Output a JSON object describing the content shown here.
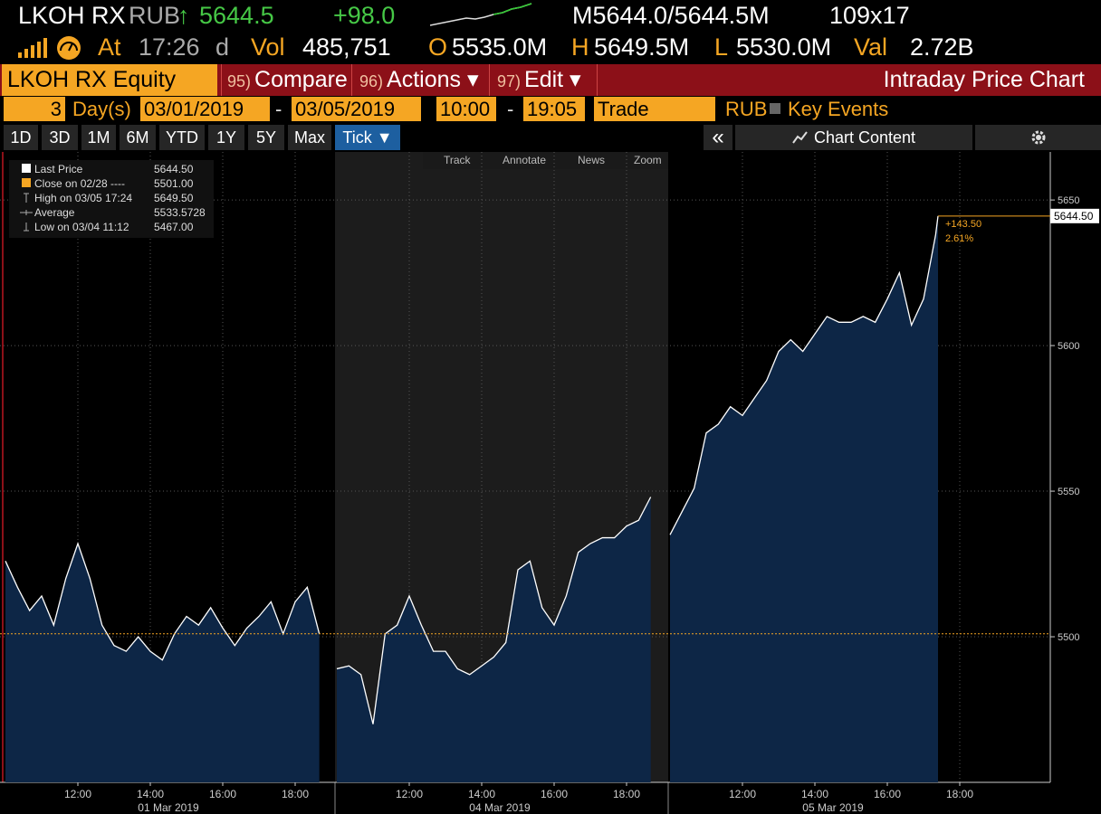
{
  "header": {
    "ticker": "LKOH RX",
    "currency": "RUB",
    "arrow": "↑",
    "last": "5644.5",
    "change": "+98.0",
    "bid_ask": "M5644.0/5644.5M",
    "size": "109x17",
    "at_label": "At",
    "time": "17:26",
    "time_flag": "d",
    "vol_label": "Vol",
    "vol": "485,751",
    "open_label": "O",
    "open": "5535.0M",
    "high_label": "H",
    "high": "5649.5M",
    "low_label": "L",
    "low": "5530.0M",
    "val_label": "Val",
    "val": "2.72B"
  },
  "menu": {
    "security": "LKOH RX Equity",
    "items": [
      {
        "num": "95)",
        "label": "Compare"
      },
      {
        "num": "96)",
        "label": "Actions ▾"
      },
      {
        "num": "97)",
        "label": "Edit ▾"
      }
    ],
    "title": "Intraday Price Chart"
  },
  "controls": {
    "days": "3",
    "days_unit": "Day(s)",
    "start": "03/01/2019",
    "dash": "-",
    "end": "03/05/2019",
    "time_start": "10:00",
    "time_end": "19:05",
    "event": "Trade",
    "currency": "RUB",
    "key_events": "Key Events"
  },
  "periods": [
    "1D",
    "3D",
    "1M",
    "6M",
    "YTD",
    "1Y",
    "5Y",
    "Max",
    "Tick ▼"
  ],
  "collapse": "«",
  "chart_content": "Chart Content",
  "tools": [
    "Track",
    "Annotate",
    "News",
    "Zoom"
  ],
  "chart_data": {
    "type": "line",
    "days": [
      "01 Mar 2019",
      "04 Mar 2019",
      "05 Mar 2019"
    ],
    "x": [
      "01 Mar 2019 10:00",
      "01 Mar 2019 10:20",
      "01 Mar 2019 10:40",
      "01 Mar 2019 11:00",
      "01 Mar 2019 11:20",
      "01 Mar 2019 11:40",
      "01 Mar 2019 12:00",
      "01 Mar 2019 12:20",
      "01 Mar 2019 12:40",
      "01 Mar 2019 13:00",
      "01 Mar 2019 13:20",
      "01 Mar 2019 13:40",
      "01 Mar 2019 14:00",
      "01 Mar 2019 14:20",
      "01 Mar 2019 14:40",
      "01 Mar 2019 15:00",
      "01 Mar 2019 15:20",
      "01 Mar 2019 15:40",
      "01 Mar 2019 16:00",
      "01 Mar 2019 16:20",
      "01 Mar 2019 16:40",
      "01 Mar 2019 17:00",
      "01 Mar 2019 17:20",
      "01 Mar 2019 17:40",
      "01 Mar 2019 18:00",
      "01 Mar 2019 18:20",
      "01 Mar 2019 18:40",
      null,
      "04 Mar 2019 10:00",
      "04 Mar 2019 10:20",
      "04 Mar 2019 10:40",
      "04 Mar 2019 11:00",
      "04 Mar 2019 11:20",
      "04 Mar 2019 11:40",
      "04 Mar 2019 12:00",
      "04 Mar 2019 12:20",
      "04 Mar 2019 12:40",
      "04 Mar 2019 13:00",
      "04 Mar 2019 13:20",
      "04 Mar 2019 13:40",
      "04 Mar 2019 14:00",
      "04 Mar 2019 14:20",
      "04 Mar 2019 14:40",
      "04 Mar 2019 15:00",
      "04 Mar 2019 15:20",
      "04 Mar 2019 15:40",
      "04 Mar 2019 16:00",
      "04 Mar 2019 16:20",
      "04 Mar 2019 16:40",
      "04 Mar 2019 17:00",
      "04 Mar 2019 17:20",
      "04 Mar 2019 17:40",
      "04 Mar 2019 18:00",
      "04 Mar 2019 18:20",
      "04 Mar 2019 18:40",
      null,
      "05 Mar 2019 10:00",
      "05 Mar 2019 10:20",
      "05 Mar 2019 10:40",
      "05 Mar 2019 11:00",
      "05 Mar 2019 11:20",
      "05 Mar 2019 11:40",
      "05 Mar 2019 12:00",
      "05 Mar 2019 12:20",
      "05 Mar 2019 12:40",
      "05 Mar 2019 13:00",
      "05 Mar 2019 13:20",
      "05 Mar 2019 13:40",
      "05 Mar 2019 14:00",
      "05 Mar 2019 14:20",
      "05 Mar 2019 14:40",
      "05 Mar 2019 15:00",
      "05 Mar 2019 15:20",
      "05 Mar 2019 15:40",
      "05 Mar 2019 16:00",
      "05 Mar 2019 16:20",
      "05 Mar 2019 16:40",
      "05 Mar 2019 17:00",
      "05 Mar 2019 17:20",
      "05 Mar 2019 17:24"
    ],
    "series": [
      {
        "color": "#ffffff",
        "fill": "#0d2646",
        "values": [
          5526,
          5517,
          5509,
          5514,
          5504,
          5520,
          5532,
          5520,
          5504,
          5497,
          5495,
          5500,
          5495,
          5492,
          5501,
          5507,
          5504,
          5510,
          5503,
          5497,
          5503,
          5507,
          5512,
          5501,
          5512,
          5517,
          5501,
          null,
          5489,
          5490,
          5487,
          5470,
          5501,
          5504,
          5514,
          5504,
          5495,
          5495,
          5489,
          5487,
          5490,
          5493,
          5498,
          5523,
          5526,
          5510,
          5504,
          5514,
          5529,
          5532,
          5534,
          5534,
          5538,
          5540,
          5548,
          null,
          5535,
          5543,
          5551,
          5570,
          5573,
          5579,
          5576,
          5582,
          5588,
          5598,
          5602,
          5598,
          5604,
          5610,
          5608,
          5608,
          5610,
          5608,
          5616,
          5625,
          5607,
          5616,
          5638,
          5644.5
        ]
      }
    ],
    "legend": [
      {
        "name": "Last Price",
        "value": 5644.5,
        "label": "5644.50"
      },
      {
        "name": "Close on 02/28 ----",
        "value": 5501,
        "label": "5501.00"
      },
      {
        "name": "High on 03/05 17:24",
        "value": 5649.5,
        "label": "5649.50"
      },
      {
        "name": "Average",
        "value": 5533.5728,
        "label": "5533.5728"
      },
      {
        "name": "Low on 03/04 11:12",
        "value": 5467,
        "label": "5467.00"
      }
    ],
    "change_label": "+143.50",
    "change_pct": "2.61%",
    "ylim": [
      5450,
      5666.5
    ],
    "yticks": [
      5500,
      5550,
      5600,
      5650
    ],
    "xticks": [
      {
        "value": "01 Mar 2019 12:00",
        "label": "12:00"
      },
      {
        "value": "01 Mar 2019 14:00",
        "label": "14:00"
      },
      {
        "value": "01 Mar 2019 16:00",
        "label": "16:00"
      },
      {
        "value": "01 Mar 2019 18:00",
        "label": "18:00"
      },
      {
        "value": "04 Mar 2019 12:00",
        "label": "12:00"
      },
      {
        "value": "04 Mar 2019 14:00",
        "label": "14:00"
      },
      {
        "value": "04 Mar 2019 16:00",
        "label": "16:00"
      },
      {
        "value": "04 Mar 2019 18:00",
        "label": "18:00"
      },
      {
        "value": "05 Mar 2019 12:00",
        "label": "12:00"
      },
      {
        "value": "05 Mar 2019 14:00",
        "label": "14:00"
      },
      {
        "value": "05 Mar 2019 16:00",
        "label": "16:00"
      },
      {
        "value": "05 Mar 2019 18:00",
        "label": "18:00"
      }
    ],
    "grid": true,
    "accent": "#f5a623"
  }
}
